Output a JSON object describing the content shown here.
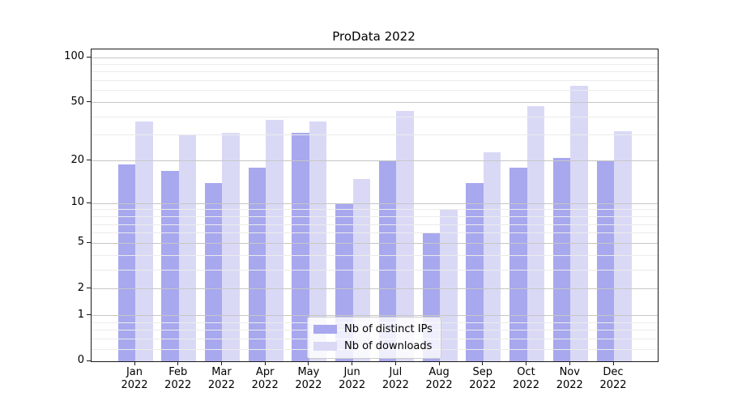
{
  "chart_data": {
    "type": "bar",
    "title": "ProData 2022",
    "categories": [
      "Jan",
      "Feb",
      "Mar",
      "Apr",
      "May",
      "Jun",
      "Jul",
      "Aug",
      "Sep",
      "Oct",
      "Nov",
      "Dec"
    ],
    "category_year": "2022",
    "series": [
      {
        "name": "Nb of distinct IPs",
        "color": "#a8a8ee",
        "values": [
          19,
          17,
          14,
          18,
          31,
          10,
          20,
          6,
          14,
          18,
          21,
          20
        ]
      },
      {
        "name": "Nb of downloads",
        "color": "#d9d9f6",
        "values": [
          37,
          30,
          31,
          38,
          37,
          15,
          44,
          9,
          23,
          47,
          65,
          32
        ]
      }
    ],
    "yscale": "log1p",
    "yticks": [
      0,
      1,
      2,
      5,
      10,
      20,
      50,
      100
    ],
    "yticks_minor": [
      0.2,
      0.4,
      0.6,
      0.8,
      3,
      4,
      6,
      7,
      8,
      9,
      30,
      40,
      60,
      70,
      80,
      90
    ],
    "ylim": [
      0,
      113
    ],
    "grid": "horizontal-major-and-minor",
    "legend_position": "lower-center",
    "colors": {
      "grid_major": "#c6c6c6",
      "grid_minor": "#ebebeb",
      "spine": "#1a1a1a",
      "background": "#ffffff"
    }
  }
}
